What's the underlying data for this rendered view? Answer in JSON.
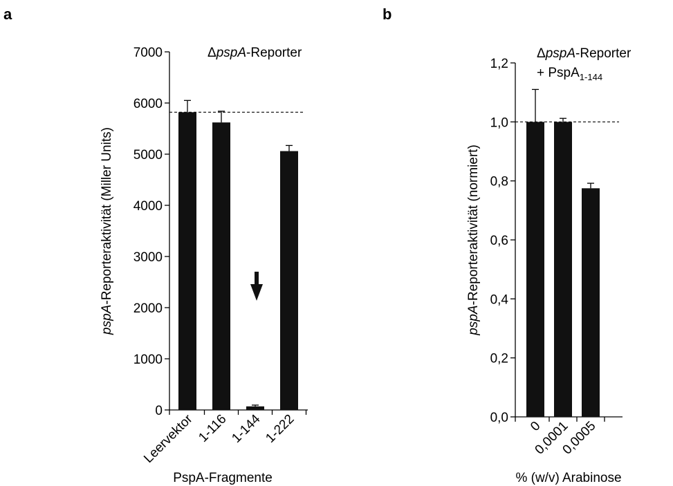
{
  "chart_data": [
    {
      "panel": "a",
      "type": "bar",
      "categories": [
        "Leervektor",
        "1-116",
        "1-144",
        "1-222"
      ],
      "values": [
        5820,
        5620,
        70,
        5060
      ],
      "errors": [
        230,
        220,
        25,
        110
      ],
      "ylabel_italic": "pspA",
      "ylabel_rest": "-Reporteraktivität (Miller Units)",
      "xlabel": "PspA-Fragmente",
      "ylim": [
        0,
        7000
      ],
      "yticks": [
        "0",
        "1000",
        "2000",
        "3000",
        "4000",
        "5000",
        "6000",
        "7000"
      ],
      "reference_line": 5820,
      "annotation": {
        "delta": "Δ",
        "italic": "pspA",
        "rest": "-Reporter"
      },
      "arrow_over": "1-144",
      "bar_color": "#111111",
      "grid": false
    },
    {
      "panel": "b",
      "type": "bar",
      "categories": [
        "0",
        "0,0001",
        "0,0005"
      ],
      "values": [
        1.0,
        1.0,
        0.775
      ],
      "errors": [
        0.11,
        0.012,
        0.017
      ],
      "ylabel_italic": "pspA",
      "ylabel_rest": "-Reporteraktivität (normiert)",
      "xlabel": "% (w/v) Arabinose",
      "ylim": [
        0,
        1.2
      ],
      "yticks": [
        "0,0",
        "0,2",
        "0,4",
        "0,6",
        "0,8",
        "1,0",
        "1,2"
      ],
      "reference_line": 1.0,
      "annotation": {
        "delta": "Δ",
        "italic": "pspA",
        "rest": "-Reporter",
        "line2_prefix": "+ PspA",
        "line2_sub": "1-144"
      },
      "bar_color": "#111111",
      "grid": false
    }
  ]
}
